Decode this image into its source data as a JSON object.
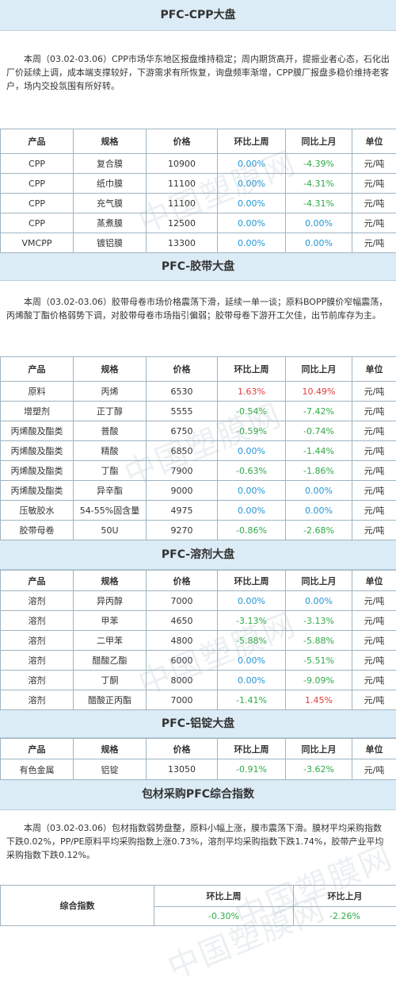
{
  "watermark": "中国塑膜网",
  "headers": [
    "产品",
    "规格",
    "价格",
    "环比上周",
    "同比上月",
    "单位"
  ],
  "cpp": {
    "title": "PFC-CPP大盘",
    "text": "本周（03.02-03.06）CPP市场华东地区报盘维持稳定；周内期货高开，提振业者心态，石化出厂价延续上调，成本端支撑较好，下游需求有所恢复，询盘频率渐增，CPP膜厂报盘多稳价维持老客户，场内交投氛围有所好转。",
    "rows": [
      {
        "product": "CPP",
        "spec": "复合膜",
        "price": "10900",
        "wow": "0.00%",
        "mom": "-4.39%",
        "unit": "元/吨"
      },
      {
        "product": "CPP",
        "spec": "纸巾膜",
        "price": "11100",
        "wow": "0.00%",
        "mom": "-4.31%",
        "unit": "元/吨"
      },
      {
        "product": "CPP",
        "spec": "充气膜",
        "price": "11100",
        "wow": "0.00%",
        "mom": "-4.31%",
        "unit": "元/吨"
      },
      {
        "product": "CPP",
        "spec": "蒸煮膜",
        "price": "12500",
        "wow": "0.00%",
        "mom": "0.00%",
        "unit": "元/吨"
      },
      {
        "product": "VMCPP",
        "spec": "镀铝膜",
        "price": "13300",
        "wow": "0.00%",
        "mom": "0.00%",
        "unit": "元/吨"
      }
    ]
  },
  "tape": {
    "title": "PFC-胶带大盘",
    "text": "本周（03.02-03.06）胶带母卷市场价格震荡下滑，延续一单一谈；原料BOPP膜价窄幅震荡，丙烯酸丁酯价格弱势下调，对胶带母卷市场指引偏弱；胶带母卷下游开工欠佳，出节前库存为主。",
    "rows": [
      {
        "product": "原料",
        "spec": "丙烯",
        "price": "6530",
        "wow": "1.63%",
        "mom": "10.49%",
        "unit": "元/吨"
      },
      {
        "product": "增塑剂",
        "spec": "正丁醇",
        "price": "5555",
        "wow": "-0.54%",
        "mom": "-7.42%",
        "unit": "元/吨"
      },
      {
        "product": "丙烯酸及酯类",
        "spec": "普酸",
        "price": "6750",
        "wow": "-0.59%",
        "mom": "-0.74%",
        "unit": "元/吨"
      },
      {
        "product": "丙烯酸及酯类",
        "spec": "精酸",
        "price": "6850",
        "wow": "0.00%",
        "mom": "-1.44%",
        "unit": "元/吨"
      },
      {
        "product": "丙烯酸及酯类",
        "spec": "丁酯",
        "price": "7900",
        "wow": "-0.63%",
        "mom": "-1.86%",
        "unit": "元/吨"
      },
      {
        "product": "丙烯酸及酯类",
        "spec": "异辛酯",
        "price": "9000",
        "wow": "0.00%",
        "mom": "0.00%",
        "unit": "元/吨"
      },
      {
        "product": "压敏胶水",
        "spec": "54-55%固含量",
        "price": "4975",
        "wow": "0.00%",
        "mom": "0.00%",
        "unit": "元/吨"
      },
      {
        "product": "胶带母卷",
        "spec": "50U",
        "price": "9270",
        "wow": "-0.86%",
        "mom": "-2.68%",
        "unit": "元/吨"
      }
    ]
  },
  "solvent": {
    "title": "PFC-溶剂大盘",
    "rows": [
      {
        "product": "溶剂",
        "spec": "异丙醇",
        "price": "7000",
        "wow": "0.00%",
        "mom": "0.00%",
        "unit": "元/吨"
      },
      {
        "product": "溶剂",
        "spec": "甲苯",
        "price": "4650",
        "wow": "-3.13%",
        "mom": "-3.13%",
        "unit": "元/吨"
      },
      {
        "product": "溶剂",
        "spec": "二甲苯",
        "price": "4800",
        "wow": "-5.88%",
        "mom": "-5.88%",
        "unit": "元/吨"
      },
      {
        "product": "溶剂",
        "spec": "醋酸乙酯",
        "price": "6000",
        "wow": "0.00%",
        "mom": "-5.51%",
        "unit": "元/吨"
      },
      {
        "product": "溶剂",
        "spec": "丁酮",
        "price": "8000",
        "wow": "0.00%",
        "mom": "-9.09%",
        "unit": "元/吨"
      },
      {
        "product": "溶剂",
        "spec": "醋酸正丙酯",
        "price": "7000",
        "wow": "-1.41%",
        "mom": "1.45%",
        "unit": "元/吨"
      }
    ]
  },
  "aluminum": {
    "title": "PFC-铝锭大盘",
    "rows": [
      {
        "product": "有色金属",
        "spec": "铝锭",
        "price": "13050",
        "wow": "-0.91%",
        "mom": "-3.62%",
        "unit": "元/吨"
      }
    ]
  },
  "composite": {
    "title": "包材采购PFC综合指数",
    "text": "本周（03.02-03.06）包材指数弱势盘整，原料小幅上涨，膜市震荡下滑。膜材平均采购指数下跌0.02%，PP/PE原料平均采购指数上涨0.73%，溶剂平均采购指数下跌1.74%，胶带产业平均采购指数下跌0.12%。",
    "label": "综合指数",
    "col_wow": "环比上周",
    "col_mom": "环比上月",
    "wow": "-0.30%",
    "mom": "-2.26%"
  },
  "colors": {
    "up": "#e43c3c",
    "down": "#2eaa46",
    "flat": "#2196d6",
    "header_bg": "#dcecf6"
  }
}
